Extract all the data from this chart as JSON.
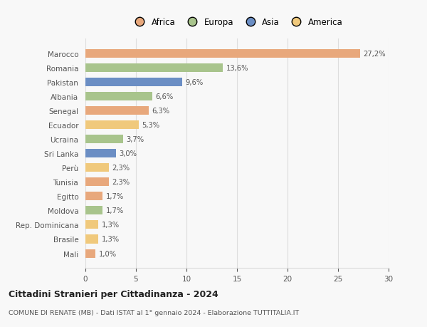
{
  "countries": [
    "Marocco",
    "Romania",
    "Pakistan",
    "Albania",
    "Senegal",
    "Ecuador",
    "Ucraina",
    "Sri Lanka",
    "Perù",
    "Tunisia",
    "Egitto",
    "Moldova",
    "Rep. Dominicana",
    "Brasile",
    "Mali"
  ],
  "values": [
    27.2,
    13.6,
    9.6,
    6.6,
    6.3,
    5.3,
    3.7,
    3.0,
    2.3,
    2.3,
    1.7,
    1.7,
    1.3,
    1.3,
    1.0
  ],
  "labels": [
    "27,2%",
    "13,6%",
    "9,6%",
    "6,6%",
    "6,3%",
    "5,3%",
    "3,7%",
    "3,0%",
    "2,3%",
    "2,3%",
    "1,7%",
    "1,7%",
    "1,3%",
    "1,3%",
    "1,0%"
  ],
  "continents": [
    "Africa",
    "Europa",
    "Asia",
    "Europa",
    "Africa",
    "America",
    "Europa",
    "Asia",
    "America",
    "Africa",
    "Africa",
    "Europa",
    "America",
    "America",
    "Africa"
  ],
  "colors": {
    "Africa": "#E8A87C",
    "Europa": "#A8C48C",
    "Asia": "#6B8EC4",
    "America": "#F0C97C"
  },
  "legend_order": [
    "Africa",
    "Europa",
    "Asia",
    "America"
  ],
  "title": "Cittadini Stranieri per Cittadinanza - 2024",
  "subtitle": "COMUNE DI RENATE (MB) - Dati ISTAT al 1° gennaio 2024 - Elaborazione TUTTITALIA.IT",
  "xlim": [
    0,
    30
  ],
  "xticks": [
    0,
    5,
    10,
    15,
    20,
    25,
    30
  ],
  "background_color": "#f8f8f8",
  "grid_color": "#dddddd"
}
